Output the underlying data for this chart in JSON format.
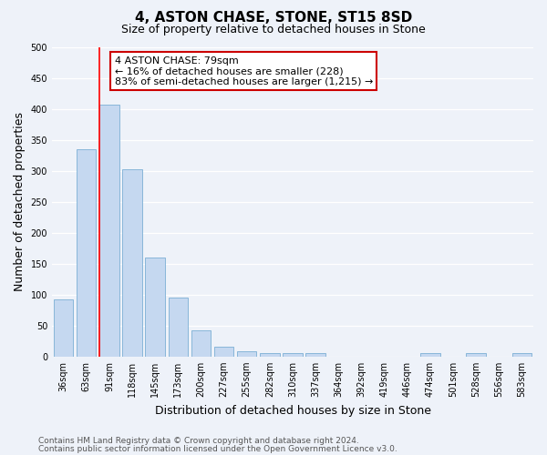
{
  "title": "4, ASTON CHASE, STONE, ST15 8SD",
  "subtitle": "Size of property relative to detached houses in Stone",
  "xlabel": "Distribution of detached houses by size in Stone",
  "ylabel": "Number of detached properties",
  "bar_color": "#c5d8f0",
  "bar_edge_color": "#7bafd4",
  "categories": [
    "36sqm",
    "63sqm",
    "91sqm",
    "118sqm",
    "145sqm",
    "173sqm",
    "200sqm",
    "227sqm",
    "255sqm",
    "282sqm",
    "310sqm",
    "337sqm",
    "364sqm",
    "392sqm",
    "419sqm",
    "446sqm",
    "474sqm",
    "501sqm",
    "528sqm",
    "556sqm",
    "583sqm"
  ],
  "values": [
    93,
    335,
    407,
    302,
    160,
    95,
    43,
    16,
    9,
    5,
    5,
    5,
    0,
    0,
    0,
    0,
    5,
    0,
    5,
    0,
    5
  ],
  "ylim": [
    0,
    500
  ],
  "yticks": [
    0,
    50,
    100,
    150,
    200,
    250,
    300,
    350,
    400,
    450,
    500
  ],
  "red_line_x": 1.55,
  "annotation_text": "4 ASTON CHASE: 79sqm\n← 16% of detached houses are smaller (228)\n83% of semi-detached houses are larger (1,215) →",
  "annotation_box_color": "#ffffff",
  "annotation_box_edge_color": "#cc0000",
  "footer_line1": "Contains HM Land Registry data © Crown copyright and database right 2024.",
  "footer_line2": "Contains public sector information licensed under the Open Government Licence v3.0.",
  "background_color": "#eef2f9",
  "grid_color": "#ffffff",
  "title_fontsize": 11,
  "subtitle_fontsize": 9,
  "label_fontsize": 9,
  "tick_fontsize": 7,
  "footer_fontsize": 6.5,
  "annotation_fontsize": 8
}
